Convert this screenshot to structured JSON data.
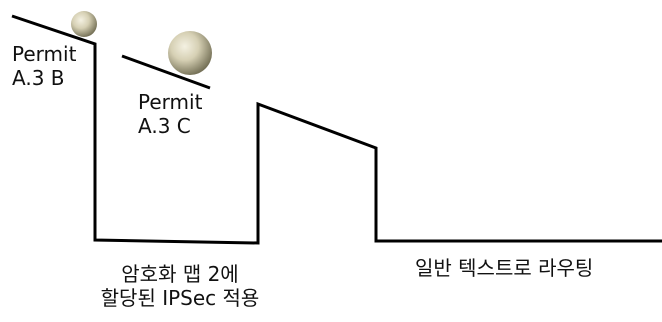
{
  "labels": {
    "permit_b": [
      "Permit",
      "A.3 B"
    ],
    "permit_c": [
      "Permit",
      "A.3 C"
    ],
    "crypto_map": [
      "암호화 맵 2에",
      "할당된 IPSec 적용"
    ],
    "plain_routing": "일반 텍스트로 라우팅"
  },
  "colors": {
    "line": "#000000",
    "ball_light": "#f4f1e2",
    "ball_mid": "#c9c3a6",
    "ball_dark": "#6e6a50"
  }
}
